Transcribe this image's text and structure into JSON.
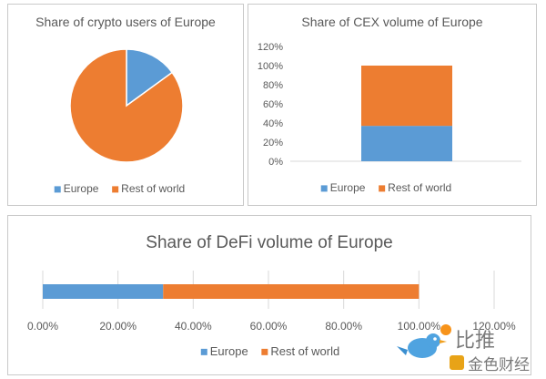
{
  "colors": {
    "europe": "#5b9bd5",
    "rest": "#ed7d31",
    "axis": "#d9d9d9",
    "text": "#595959"
  },
  "chart_data": [
    {
      "type": "pie",
      "title": "Share of crypto users of Europe",
      "categories": [
        "Europe",
        "Rest of world"
      ],
      "values": [
        15,
        85
      ],
      "legend": "bottom"
    },
    {
      "type": "bar",
      "orientation": "vertical",
      "stacked": true,
      "title": "Share of CEX volume of Europe",
      "categories": [
        ""
      ],
      "series": [
        {
          "name": "Europe",
          "values": [
            37
          ]
        },
        {
          "name": "Rest of world",
          "values": [
            63
          ]
        }
      ],
      "ylim": [
        0,
        120
      ],
      "yticks": [
        "0%",
        "20%",
        "40%",
        "60%",
        "80%",
        "100%",
        "120%"
      ],
      "grid": false,
      "legend": "bottom"
    },
    {
      "type": "bar",
      "orientation": "horizontal",
      "stacked": true,
      "title": "Share of DeFi volume of Europe",
      "categories": [
        ""
      ],
      "series": [
        {
          "name": "Europe",
          "values": [
            32
          ]
        },
        {
          "name": "Rest of world",
          "values": [
            68
          ]
        }
      ],
      "xlim": [
        0,
        120
      ],
      "xticks": [
        "0.00%",
        "20.00%",
        "40.00%",
        "60.00%",
        "80.00%",
        "100.00%",
        "120.00%"
      ],
      "grid": true,
      "legend": "bottom"
    }
  ],
  "watermark": {
    "line1": "比推",
    "line2": "金色财经"
  }
}
